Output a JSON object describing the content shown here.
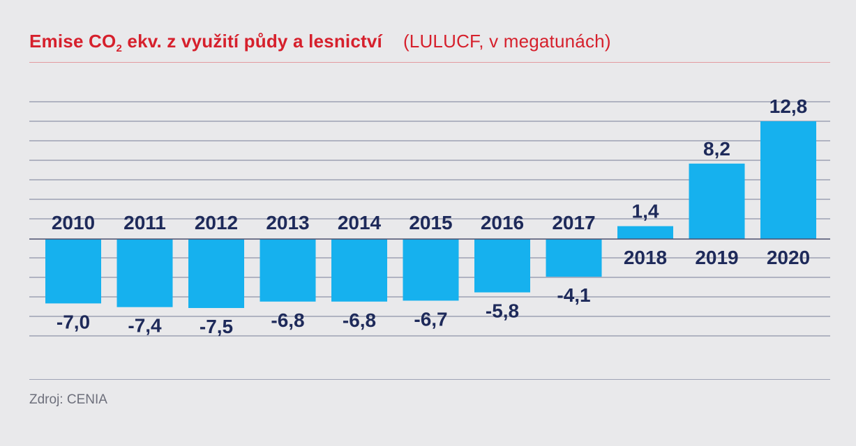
{
  "title": {
    "main_before": "Emise CO",
    "main_sub": "2",
    "main_after": " ekv. z využití půdy a lesnictví",
    "subtitle": "(LULUCF, v megatunách)"
  },
  "source": "Zdroj: CENIA",
  "colors": {
    "bar": "#16b1ee",
    "title": "#d6202c",
    "text": "#1e2a5a",
    "grid": "#8f93a8",
    "zero_line": "#4a4f6e"
  },
  "chart_data": {
    "type": "bar",
    "categories": [
      "2010",
      "2011",
      "2012",
      "2013",
      "2014",
      "2015",
      "2016",
      "2017",
      "2018",
      "2019",
      "2020"
    ],
    "values": [
      -7.0,
      -7.4,
      -7.5,
      -6.8,
      -6.8,
      -6.7,
      -5.8,
      -4.1,
      1.4,
      8.2,
      12.8
    ],
    "value_labels": [
      "-7,0",
      "-7,4",
      "-7,5",
      "-6,8",
      "-6,8",
      "-6,7",
      "-5,8",
      "-4,1",
      "1,4",
      "8,2",
      "12,8"
    ],
    "grid": true,
    "xlabel": "",
    "ylabel": ""
  }
}
